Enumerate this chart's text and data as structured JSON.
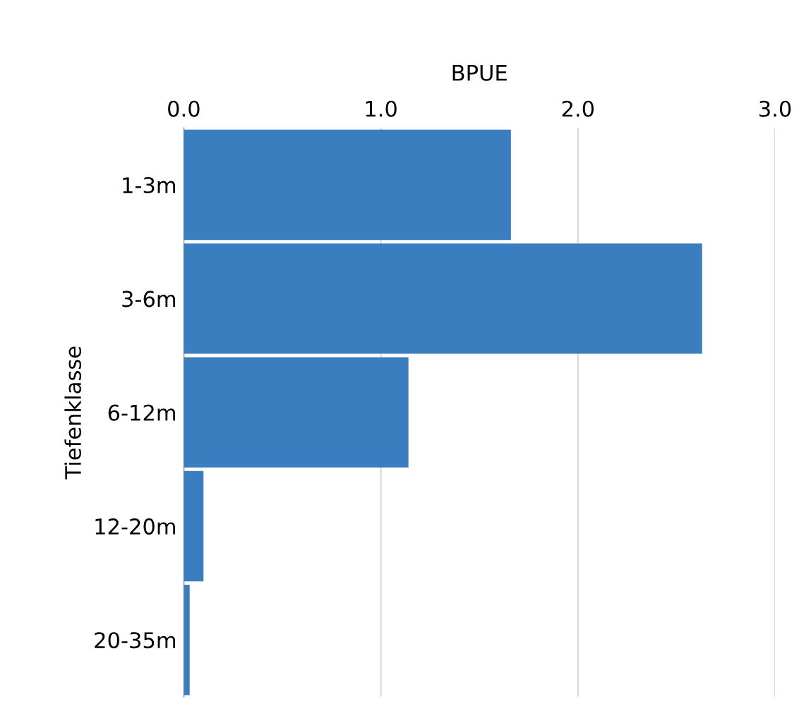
{
  "chart_data": {
    "type": "bar",
    "orientation": "horizontal",
    "xlabel": "BPUE",
    "ylabel": "Tiefenklasse",
    "categories": [
      "1-3m",
      "3-6m",
      "6-12m",
      "12-20m",
      "20-35m"
    ],
    "values": [
      1.66,
      2.63,
      1.14,
      0.1,
      0.03
    ],
    "color": "#3a7ebf",
    "xlim": [
      0,
      3.0
    ],
    "xticks": [
      {
        "value": 0,
        "label": "0.0"
      },
      {
        "value": 1,
        "label": "1.0"
      },
      {
        "value": 2,
        "label": "2.0"
      },
      {
        "value": 3,
        "label": "3.0"
      }
    ],
    "grid": "x"
  }
}
